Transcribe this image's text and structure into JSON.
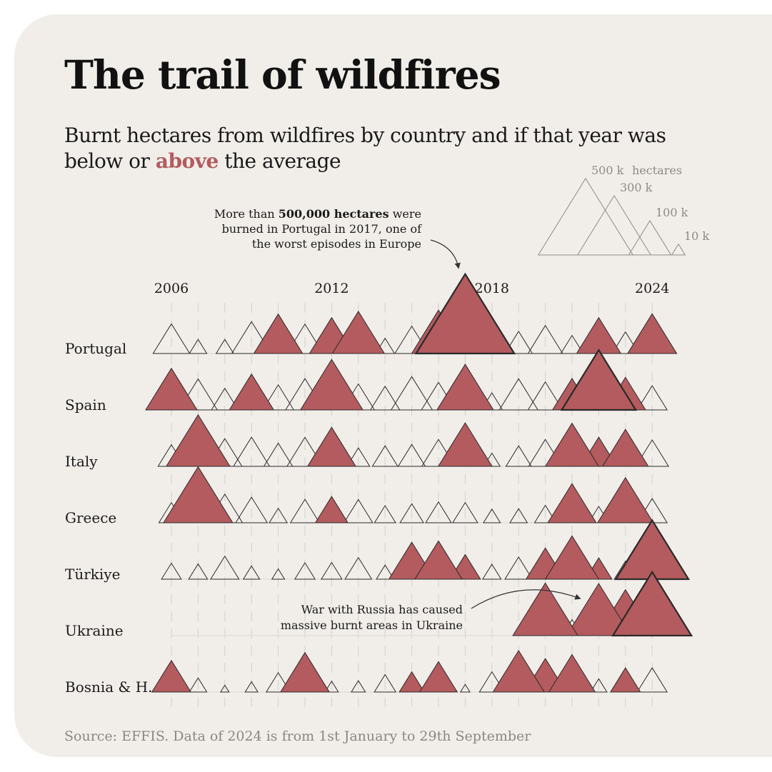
{
  "header": {
    "title": "The trail of wildfires",
    "subtitle_part1": "Burnt hectares from wildfires by country and if that year was below or ",
    "subtitle_highlight": "above",
    "subtitle_part2": " the average"
  },
  "source": "Source: EFFIS. Data of 2024 is from 1st January to 29th September",
  "colors": {
    "above": "#b35b5e",
    "background": "#f1eeea",
    "outline": "#2a2a2a"
  },
  "legend": {
    "unit": "hectares",
    "items": [
      {
        "label": "500 k",
        "value": 500000
      },
      {
        "label": "300 k",
        "value": 300000
      },
      {
        "label": "100 k",
        "value": 100000
      },
      {
        "label": "10 k",
        "value": 10000
      }
    ]
  },
  "annotations": {
    "portugal": {
      "before": "More than ",
      "bold": "500,000 hectares",
      "after": " were",
      "line2": "burned in Portugal in 2017, one of",
      "line3": "the worst episodes in Europe"
    },
    "ukraine": {
      "line1": "War with Russia has caused",
      "line2": "massive burnt areas in Ukraine"
    }
  },
  "chart_data": {
    "type": "area",
    "x_tick_labels": [
      "2006",
      "2012",
      "2018",
      "2024"
    ],
    "years": [
      2006,
      2007,
      2008,
      2009,
      2010,
      2011,
      2012,
      2013,
      2014,
      2015,
      2016,
      2017,
      2018,
      2019,
      2020,
      2021,
      2022,
      2023,
      2024
    ],
    "unit": "hectares",
    "series": [
      {
        "name": "Portugal",
        "values": [
          75000,
          17000,
          17000,
          87000,
          133000,
          74000,
          110000,
          152000,
          20000,
          64000,
          161000,
          540000,
          44000,
          42000,
          67000,
          28000,
          110000,
          40000,
          135000
        ],
        "above": [
          false,
          false,
          false,
          false,
          true,
          false,
          true,
          true,
          false,
          false,
          true,
          true,
          false,
          false,
          false,
          false,
          true,
          false,
          true
        ]
      },
      {
        "name": "Spain",
        "values": [
          148000,
          82000,
          40000,
          110000,
          54000,
          84000,
          218000,
          58000,
          48000,
          95000,
          65000,
          178000,
          25000,
          83000,
          67000,
          85000,
          306000,
          91000,
          50000
        ],
        "above": [
          true,
          false,
          false,
          true,
          false,
          false,
          true,
          false,
          false,
          false,
          false,
          true,
          false,
          false,
          false,
          true,
          true,
          true,
          false
        ]
      },
      {
        "name": "Italy",
        "values": [
          40000,
          227000,
          66000,
          73000,
          46000,
          72000,
          130000,
          29000,
          36000,
          41000,
          62000,
          162000,
          15000,
          36000,
          62000,
          159000,
          73000,
          117000,
          60000
        ],
        "above": [
          false,
          true,
          false,
          false,
          false,
          false,
          true,
          false,
          false,
          false,
          false,
          true,
          false,
          false,
          false,
          true,
          true,
          true,
          false
        ]
      },
      {
        "name": "Greece",
        "values": [
          35000,
          268000,
          70000,
          56000,
          18000,
          47000,
          59000,
          46000,
          25000,
          31000,
          37000,
          35000,
          16000,
          17000,
          26000,
          131000,
          23000,
          174000,
          50000
        ],
        "above": [
          false,
          true,
          false,
          false,
          false,
          false,
          true,
          false,
          false,
          false,
          false,
          false,
          false,
          false,
          false,
          true,
          false,
          true,
          false
        ]
      },
      {
        "name": "Türkiye",
        "values": [
          22000,
          20000,
          45000,
          15000,
          9000,
          23000,
          24000,
          40000,
          17000,
          117000,
          125000,
          52000,
          19000,
          42000,
          83000,
          160000,
          39000,
          28000,
          296000
        ],
        "above": [
          false,
          false,
          false,
          false,
          false,
          false,
          false,
          false,
          false,
          true,
          true,
          true,
          false,
          false,
          true,
          true,
          true,
          false,
          true
        ]
      },
      {
        "name": "Ukraine",
        "values": [
          0,
          0,
          0,
          0,
          0,
          0,
          0,
          0,
          0,
          0,
          0,
          0,
          0,
          0,
          236000,
          22000,
          232000,
          180000,
          345000
        ],
        "above": [
          false,
          false,
          false,
          false,
          false,
          false,
          false,
          false,
          false,
          false,
          false,
          false,
          false,
          false,
          true,
          false,
          true,
          true,
          true
        ]
      },
      {
        "name": "Bosnia & H.",
        "values": [
          85000,
          17000,
          4000,
          9000,
          32000,
          133000,
          10000,
          11000,
          26000,
          35000,
          79000,
          5000,
          35000,
          147000,
          96000,
          120000,
          15000,
          50000,
          50000
        ],
        "above": [
          true,
          false,
          false,
          false,
          false,
          true,
          false,
          false,
          false,
          true,
          true,
          false,
          false,
          true,
          true,
          true,
          false,
          true,
          false
        ]
      }
    ]
  }
}
